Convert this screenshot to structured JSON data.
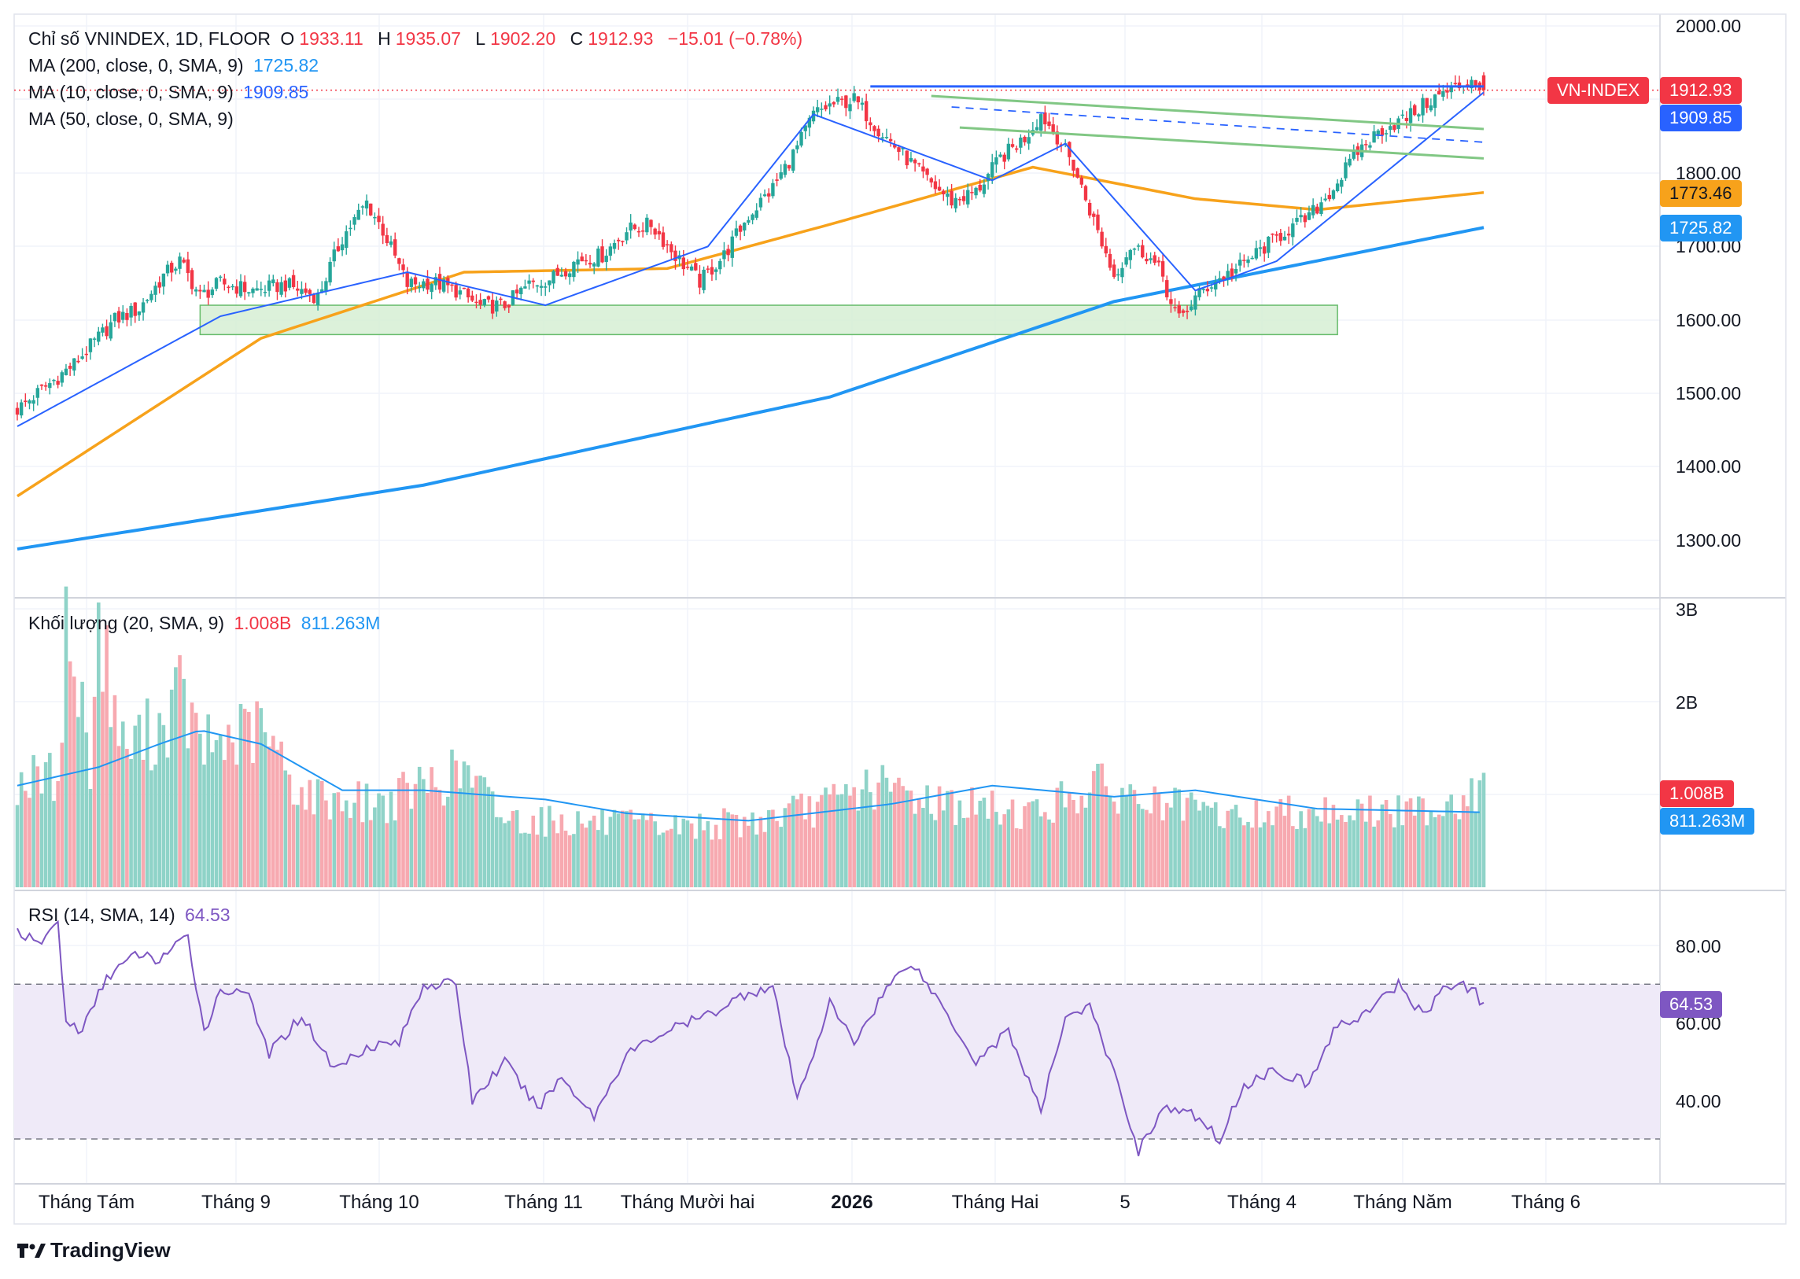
{
  "main_legend": {
    "title": "Chỉ số VNINDEX, 1D, FLOOR",
    "o_label": "O",
    "o_value": "1933.11",
    "h_label": "H",
    "h_value": "1935.07",
    "l_label": "L",
    "l_value": "1902.20",
    "c_label": "C",
    "c_value": "1912.93",
    "change": "−15.01 (−0.78%)",
    "ma200_label": "MA (200, close, 0, SMA, 9)",
    "ma200_value": "1725.82",
    "ma10_label": "MA (10, close, 0, SMA, 9)",
    "ma10_value": "1909.85",
    "ma50_label": "MA (50, close, 0, SMA, 9)"
  },
  "volume_legend": {
    "label": "Khối lượng (20, SMA, 9)",
    "value": "1.008B",
    "ma_value": "811.263M"
  },
  "rsi_legend": {
    "label": "RSI (14, SMA, 14)",
    "value": "64.53"
  },
  "price_labels": {
    "symbol": "VN-INDEX",
    "last": "1912.93",
    "ma10": "1909.85",
    "ma50": "1773.46",
    "ma200": "1725.82",
    "vol": "1.008B",
    "vol_ma": "811.263M",
    "rsi": "64.53"
  },
  "price_ticks": [
    "2000.00",
    "1800.00",
    "1700.00",
    "1600.00",
    "1500.00",
    "1400.00",
    "1300.00"
  ],
  "volume_ticks": [
    "3B",
    "2B"
  ],
  "rsi_ticks": [
    "80.00",
    "60.00",
    "40.00"
  ],
  "time_ticks": [
    "Tháng Tám",
    "Tháng 9",
    "Tháng 10",
    "Tháng 11",
    "Tháng Mười hai",
    "2026",
    "Tháng Hai",
    "5",
    "Tháng 4",
    "Tháng Năm",
    "Tháng 6"
  ],
  "brand": "TradingView",
  "colors": {
    "up": "#26a69a",
    "down": "#f23645",
    "ma10": "#2962ff",
    "ma50": "#f7a21b",
    "ma200": "#2196f3",
    "vol_up": "#8fd3c8",
    "vol_down": "#f7a9b0",
    "rsi": "#7e57c2",
    "rsi_band": "#efeaf8",
    "zone": "#d6efd4",
    "trend_green": "#81c784",
    "resistance": "#2962ff"
  },
  "chart_data": [
    {
      "type": "candlestick",
      "title": "Chỉ số VNINDEX, 1D, FLOOR",
      "ylim": [
        1250,
        2020
      ],
      "last_ohlc": {
        "open": 1933.11,
        "high": 1935.07,
        "low": 1902.2,
        "close": 1912.93,
        "change": -15.01,
        "change_pct": -0.78
      },
      "close_path": [
        [
          0,
          1478
        ],
        [
          14,
          1540
        ],
        [
          24,
          1600
        ],
        [
          30,
          1615
        ],
        [
          36,
          1660
        ],
        [
          40,
          1680
        ],
        [
          45,
          1632
        ],
        [
          50,
          1650
        ],
        [
          58,
          1640
        ],
        [
          66,
          1648
        ],
        [
          74,
          1632
        ],
        [
          80,
          1712
        ],
        [
          86,
          1760
        ],
        [
          90,
          1722
        ],
        [
          96,
          1648
        ],
        [
          102,
          1652
        ],
        [
          108,
          1640
        ],
        [
          114,
          1618
        ],
        [
          120,
          1620
        ],
        [
          126,
          1648
        ],
        [
          132,
          1658
        ],
        [
          138,
          1682
        ],
        [
          144,
          1688
        ],
        [
          150,
          1722
        ],
        [
          156,
          1730
        ],
        [
          162,
          1688
        ],
        [
          168,
          1652
        ],
        [
          174,
          1688
        ],
        [
          180,
          1742
        ],
        [
          186,
          1780
        ],
        [
          192,
          1835
        ],
        [
          196,
          1880
        ],
        [
          200,
          1892
        ],
        [
          206,
          1900
        ],
        [
          212,
          1860
        ],
        [
          218,
          1825
        ],
        [
          224,
          1790
        ],
        [
          230,
          1762
        ],
        [
          236,
          1774
        ],
        [
          242,
          1820
        ],
        [
          248,
          1848
        ],
        [
          252,
          1880
        ],
        [
          256,
          1850
        ],
        [
          260,
          1810
        ],
        [
          266,
          1720
        ],
        [
          270,
          1660
        ],
        [
          274,
          1700
        ],
        [
          278,
          1690
        ],
        [
          282,
          1660
        ],
        [
          284,
          1620
        ],
        [
          286,
          1600
        ],
        [
          290,
          1630
        ],
        [
          294,
          1650
        ],
        [
          300,
          1668
        ],
        [
          306,
          1695
        ],
        [
          312,
          1720
        ],
        [
          318,
          1740
        ],
        [
          324,
          1780
        ],
        [
          330,
          1830
        ],
        [
          336,
          1860
        ],
        [
          342,
          1875
        ],
        [
          348,
          1900
        ],
        [
          354,
          1915
        ],
        [
          358,
          1928
        ],
        [
          361,
          1912.93
        ]
      ],
      "ma10": [
        [
          0,
          1455
        ],
        [
          50,
          1605
        ],
        [
          96,
          1665
        ],
        [
          130,
          1620
        ],
        [
          170,
          1700
        ],
        [
          196,
          1880
        ],
        [
          240,
          1790
        ],
        [
          258,
          1840
        ],
        [
          290,
          1640
        ],
        [
          310,
          1680
        ],
        [
          361,
          1909.85
        ]
      ],
      "ma50": [
        [
          0,
          1360
        ],
        [
          60,
          1575
        ],
        [
          110,
          1665
        ],
        [
          160,
          1670
        ],
        [
          200,
          1730
        ],
        [
          250,
          1808
        ],
        [
          290,
          1765
        ],
        [
          320,
          1750
        ],
        [
          361,
          1773.46
        ]
      ],
      "ma200": [
        [
          0,
          1288
        ],
        [
          100,
          1375
        ],
        [
          200,
          1495
        ],
        [
          270,
          1625
        ],
        [
          361,
          1725.82
        ]
      ],
      "support_zone": {
        "x": [
          45,
          325
        ],
        "y": [
          1580,
          1620
        ]
      },
      "resistance_line": {
        "x": [
          210,
          361
        ],
        "y": 1918
      },
      "trendlines": [
        {
          "style": "solid",
          "x": [
            225,
            361
          ],
          "y": [
            1905,
            1860
          ]
        },
        {
          "style": "solid",
          "x": [
            232,
            361
          ],
          "y": [
            1862,
            1820
          ]
        },
        {
          "style": "dashed",
          "x": [
            230,
            361
          ],
          "y": [
            1890,
            1842
          ]
        }
      ]
    },
    {
      "type": "bar",
      "name": "Khối lượng (20, SMA, 9)",
      "ylim": [
        0,
        3000000000
      ],
      "last_value": 1008000000,
      "last_ma": 811263000,
      "path_note_free": true,
      "volume_path": [
        [
          0,
          1.15
        ],
        [
          10,
          1.2
        ],
        [
          12,
          2.8
        ],
        [
          18,
          1.4
        ],
        [
          20,
          2.8
        ],
        [
          26,
          1.5
        ],
        [
          36,
          1.75
        ],
        [
          40,
          2.1
        ],
        [
          45,
          1.5
        ],
        [
          60,
          1.7
        ],
        [
          70,
          1.0
        ],
        [
          90,
          0.9
        ],
        [
          100,
          1.1
        ],
        [
          110,
          1.25
        ],
        [
          120,
          0.75
        ],
        [
          140,
          0.7
        ],
        [
          160,
          0.65
        ],
        [
          180,
          0.7
        ],
        [
          200,
          0.9
        ],
        [
          210,
          1.1
        ],
        [
          230,
          0.9
        ],
        [
          250,
          0.8
        ],
        [
          265,
          1.1
        ],
        [
          280,
          0.9
        ],
        [
          300,
          0.75
        ],
        [
          320,
          0.85
        ],
        [
          340,
          0.8
        ],
        [
          361,
          1.008
        ]
      ],
      "ma_path": [
        [
          0,
          1.1
        ],
        [
          20,
          1.3
        ],
        [
          35,
          1.55
        ],
        [
          45,
          1.7
        ],
        [
          60,
          1.55
        ],
        [
          80,
          1.05
        ],
        [
          100,
          1.05
        ],
        [
          130,
          0.95
        ],
        [
          150,
          0.8
        ],
        [
          180,
          0.72
        ],
        [
          215,
          0.9
        ],
        [
          240,
          1.1
        ],
        [
          270,
          0.98
        ],
        [
          290,
          1.05
        ],
        [
          320,
          0.85
        ],
        [
          361,
          0.811263
        ]
      ]
    },
    {
      "type": "line",
      "name": "RSI (14, SMA, 14)",
      "ylim": [
        20,
        100
      ],
      "bands": [
        30,
        70
      ],
      "last_value": 64.53,
      "values_path": [
        [
          0,
          84
        ],
        [
          5,
          80
        ],
        [
          10,
          86
        ],
        [
          12,
          60
        ],
        [
          16,
          58
        ],
        [
          22,
          72
        ],
        [
          30,
          78
        ],
        [
          34,
          76
        ],
        [
          42,
          82
        ],
        [
          46,
          58
        ],
        [
          50,
          68
        ],
        [
          56,
          69
        ],
        [
          62,
          52
        ],
        [
          70,
          62
        ],
        [
          78,
          48
        ],
        [
          86,
          54
        ],
        [
          94,
          55
        ],
        [
          100,
          70
        ],
        [
          108,
          70
        ],
        [
          112,
          40
        ],
        [
          120,
          50
        ],
        [
          128,
          38
        ],
        [
          134,
          46
        ],
        [
          142,
          36
        ],
        [
          150,
          52
        ],
        [
          160,
          58
        ],
        [
          170,
          62
        ],
        [
          180,
          68
        ],
        [
          186,
          69
        ],
        [
          192,
          40
        ],
        [
          200,
          65
        ],
        [
          206,
          55
        ],
        [
          214,
          69
        ],
        [
          220,
          76
        ],
        [
          228,
          64
        ],
        [
          236,
          50
        ],
        [
          244,
          58
        ],
        [
          252,
          37
        ],
        [
          258,
          62
        ],
        [
          264,
          64
        ],
        [
          270,
          47
        ],
        [
          276,
          27
        ],
        [
          282,
          38
        ],
        [
          290,
          36
        ],
        [
          296,
          30
        ],
        [
          302,
          44
        ],
        [
          310,
          48
        ],
        [
          318,
          44
        ],
        [
          324,
          58
        ],
        [
          334,
          64
        ],
        [
          340,
          70
        ],
        [
          346,
          62
        ],
        [
          352,
          70
        ],
        [
          358,
          69
        ],
        [
          361,
          64.53
        ]
      ]
    }
  ]
}
